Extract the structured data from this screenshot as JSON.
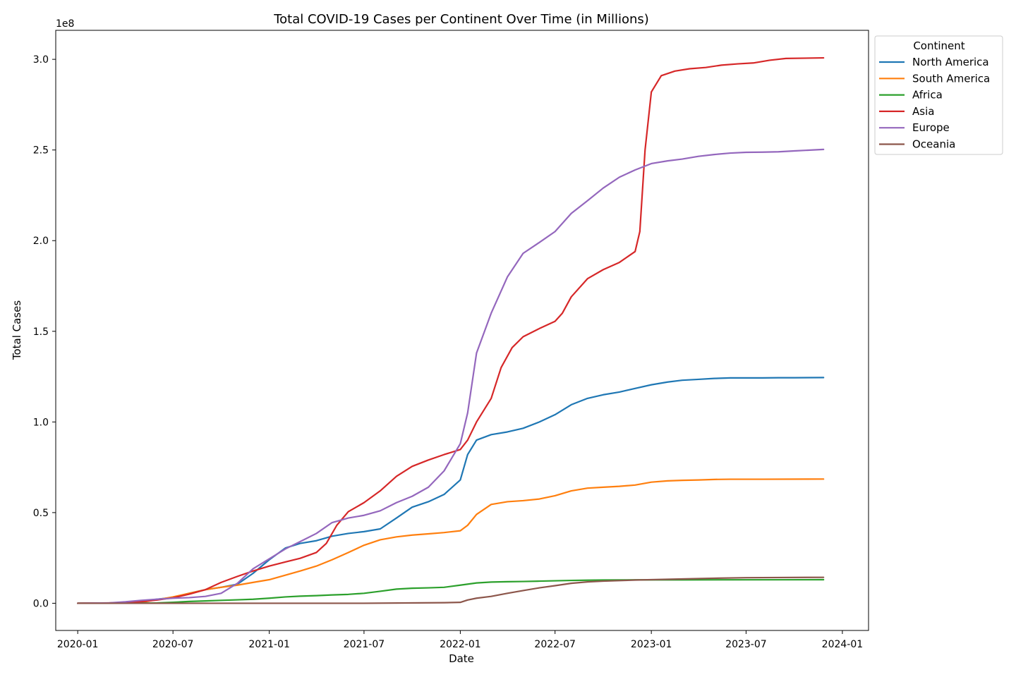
{
  "chart_data": {
    "type": "line",
    "title": "Total COVID-19 Cases per Continent Over Time (in Millions)",
    "xlabel": "Date",
    "ylabel": "Total Cases",
    "y_offset_label": "1e8",
    "y_scale": 100000000,
    "x_ticks": [
      "2020-01",
      "2020-07",
      "2021-01",
      "2021-07",
      "2022-01",
      "2022-07",
      "2023-01",
      "2023-07",
      "2024-01"
    ],
    "y_ticks": [
      0.0,
      0.5,
      1.0,
      1.5,
      2.0,
      2.5,
      3.0
    ],
    "y_tick_labels": [
      "0.0",
      "0.5",
      "1.0",
      "1.5",
      "2.0",
      "2.5",
      "3.0"
    ],
    "xlim": [
      "2019-11-20",
      "2024-02-20"
    ],
    "ylim": [
      -0.15,
      3.16
    ],
    "grid": false,
    "legend": {
      "title": "Continent",
      "placement": "upper-right-outside"
    },
    "series": [
      {
        "name": "North America",
        "color": "#1f77b4",
        "points": [
          [
            "2020-01-01",
            0.0
          ],
          [
            "2020-03-15",
            0.001
          ],
          [
            "2020-05-01",
            0.012
          ],
          [
            "2020-06-01",
            0.022
          ],
          [
            "2020-07-01",
            0.032
          ],
          [
            "2020-08-01",
            0.055
          ],
          [
            "2020-09-01",
            0.075
          ],
          [
            "2020-10-01",
            0.088
          ],
          [
            "2020-11-01",
            0.105
          ],
          [
            "2020-12-01",
            0.165
          ],
          [
            "2021-01-01",
            0.24
          ],
          [
            "2021-02-01",
            0.305
          ],
          [
            "2021-03-01",
            0.33
          ],
          [
            "2021-04-01",
            0.345
          ],
          [
            "2021-05-01",
            0.37
          ],
          [
            "2021-06-01",
            0.385
          ],
          [
            "2021-07-01",
            0.395
          ],
          [
            "2021-08-01",
            0.41
          ],
          [
            "2021-09-01",
            0.47
          ],
          [
            "2021-10-01",
            0.53
          ],
          [
            "2021-11-01",
            0.56
          ],
          [
            "2021-12-01",
            0.6
          ],
          [
            "2022-01-01",
            0.68
          ],
          [
            "2022-01-15",
            0.82
          ],
          [
            "2022-02-01",
            0.9
          ],
          [
            "2022-03-01",
            0.93
          ],
          [
            "2022-04-01",
            0.945
          ],
          [
            "2022-05-01",
            0.965
          ],
          [
            "2022-06-01",
            1.0
          ],
          [
            "2022-07-01",
            1.04
          ],
          [
            "2022-08-01",
            1.095
          ],
          [
            "2022-09-01",
            1.13
          ],
          [
            "2022-10-01",
            1.15
          ],
          [
            "2022-11-01",
            1.165
          ],
          [
            "2022-12-01",
            1.185
          ],
          [
            "2023-01-01",
            1.205
          ],
          [
            "2023-02-01",
            1.22
          ],
          [
            "2023-03-01",
            1.23
          ],
          [
            "2023-04-01",
            1.235
          ],
          [
            "2023-05-01",
            1.24
          ],
          [
            "2023-06-01",
            1.243
          ],
          [
            "2023-07-01",
            1.243
          ],
          [
            "2023-08-01",
            1.243
          ],
          [
            "2023-09-01",
            1.244
          ],
          [
            "2023-10-01",
            1.244
          ],
          [
            "2023-11-26",
            1.245
          ]
        ]
      },
      {
        "name": "South America",
        "color": "#ff7f0e",
        "points": [
          [
            "2020-01-01",
            0.0
          ],
          [
            "2020-04-01",
            0.0
          ],
          [
            "2020-05-01",
            0.005
          ],
          [
            "2020-06-01",
            0.02
          ],
          [
            "2020-07-01",
            0.035
          ],
          [
            "2020-08-01",
            0.055
          ],
          [
            "2020-09-01",
            0.075
          ],
          [
            "2020-10-01",
            0.088
          ],
          [
            "2020-11-01",
            0.1
          ],
          [
            "2020-12-01",
            0.115
          ],
          [
            "2021-01-01",
            0.13
          ],
          [
            "2021-02-01",
            0.155
          ],
          [
            "2021-03-01",
            0.178
          ],
          [
            "2021-04-01",
            0.205
          ],
          [
            "2021-05-01",
            0.24
          ],
          [
            "2021-06-01",
            0.28
          ],
          [
            "2021-07-01",
            0.32
          ],
          [
            "2021-08-01",
            0.35
          ],
          [
            "2021-09-01",
            0.366
          ],
          [
            "2021-10-01",
            0.376
          ],
          [
            "2021-11-01",
            0.383
          ],
          [
            "2021-12-01",
            0.39
          ],
          [
            "2022-01-01",
            0.4
          ],
          [
            "2022-01-15",
            0.43
          ],
          [
            "2022-02-01",
            0.49
          ],
          [
            "2022-03-01",
            0.545
          ],
          [
            "2022-04-01",
            0.56
          ],
          [
            "2022-05-01",
            0.566
          ],
          [
            "2022-06-01",
            0.575
          ],
          [
            "2022-07-01",
            0.593
          ],
          [
            "2022-08-01",
            0.62
          ],
          [
            "2022-09-01",
            0.635
          ],
          [
            "2022-10-01",
            0.64
          ],
          [
            "2022-11-01",
            0.645
          ],
          [
            "2022-12-01",
            0.652
          ],
          [
            "2023-01-01",
            0.668
          ],
          [
            "2023-02-01",
            0.675
          ],
          [
            "2023-03-01",
            0.678
          ],
          [
            "2023-04-01",
            0.68
          ],
          [
            "2023-05-01",
            0.683
          ],
          [
            "2023-06-01",
            0.684
          ],
          [
            "2023-08-01",
            0.684
          ],
          [
            "2023-11-26",
            0.685
          ]
        ]
      },
      {
        "name": "Africa",
        "color": "#2ca02c",
        "points": [
          [
            "2020-01-01",
            0.0
          ],
          [
            "2020-04-01",
            0.0
          ],
          [
            "2020-06-01",
            0.002
          ],
          [
            "2020-07-01",
            0.005
          ],
          [
            "2020-08-01",
            0.01
          ],
          [
            "2020-09-01",
            0.013
          ],
          [
            "2020-10-01",
            0.016
          ],
          [
            "2020-11-01",
            0.019
          ],
          [
            "2020-12-01",
            0.022
          ],
          [
            "2021-01-01",
            0.028
          ],
          [
            "2021-02-01",
            0.035
          ],
          [
            "2021-03-01",
            0.039
          ],
          [
            "2021-04-01",
            0.042
          ],
          [
            "2021-05-01",
            0.046
          ],
          [
            "2021-06-01",
            0.049
          ],
          [
            "2021-07-01",
            0.055
          ],
          [
            "2021-08-01",
            0.066
          ],
          [
            "2021-09-01",
            0.078
          ],
          [
            "2021-10-01",
            0.083
          ],
          [
            "2021-11-01",
            0.085
          ],
          [
            "2021-12-01",
            0.088
          ],
          [
            "2022-01-01",
            0.1
          ],
          [
            "2022-02-01",
            0.112
          ],
          [
            "2022-03-01",
            0.117
          ],
          [
            "2022-04-01",
            0.119
          ],
          [
            "2022-05-01",
            0.12
          ],
          [
            "2022-06-01",
            0.122
          ],
          [
            "2022-07-01",
            0.124
          ],
          [
            "2022-08-01",
            0.126
          ],
          [
            "2022-09-01",
            0.127
          ],
          [
            "2022-10-01",
            0.128
          ],
          [
            "2022-12-01",
            0.129
          ],
          [
            "2023-03-01",
            0.129
          ],
          [
            "2023-11-26",
            0.13
          ]
        ]
      },
      {
        "name": "Asia",
        "color": "#d62728",
        "points": [
          [
            "2020-01-01",
            0.0
          ],
          [
            "2020-03-01",
            0.002
          ],
          [
            "2020-04-01",
            0.004
          ],
          [
            "2020-05-01",
            0.009
          ],
          [
            "2020-06-01",
            0.018
          ],
          [
            "2020-07-01",
            0.03
          ],
          [
            "2020-08-01",
            0.05
          ],
          [
            "2020-09-01",
            0.075
          ],
          [
            "2020-10-01",
            0.115
          ],
          [
            "2020-11-01",
            0.148
          ],
          [
            "2020-12-01",
            0.178
          ],
          [
            "2021-01-01",
            0.205
          ],
          [
            "2021-02-01",
            0.228
          ],
          [
            "2021-03-01",
            0.248
          ],
          [
            "2021-04-01",
            0.28
          ],
          [
            "2021-04-20",
            0.33
          ],
          [
            "2021-05-10",
            0.43
          ],
          [
            "2021-06-01",
            0.505
          ],
          [
            "2021-07-01",
            0.555
          ],
          [
            "2021-08-01",
            0.62
          ],
          [
            "2021-09-01",
            0.7
          ],
          [
            "2021-10-01",
            0.755
          ],
          [
            "2021-11-01",
            0.79
          ],
          [
            "2021-12-01",
            0.82
          ],
          [
            "2022-01-01",
            0.848
          ],
          [
            "2022-01-15",
            0.9
          ],
          [
            "2022-02-01",
            1.0
          ],
          [
            "2022-03-01",
            1.13
          ],
          [
            "2022-03-20",
            1.3
          ],
          [
            "2022-04-10",
            1.41
          ],
          [
            "2022-05-01",
            1.47
          ],
          [
            "2022-06-01",
            1.515
          ],
          [
            "2022-07-01",
            1.555
          ],
          [
            "2022-07-15",
            1.6
          ],
          [
            "2022-08-01",
            1.69
          ],
          [
            "2022-09-01",
            1.79
          ],
          [
            "2022-10-01",
            1.84
          ],
          [
            "2022-11-01",
            1.88
          ],
          [
            "2022-12-01",
            1.94
          ],
          [
            "2022-12-10",
            2.05
          ],
          [
            "2022-12-20",
            2.5
          ],
          [
            "2023-01-01",
            2.82
          ],
          [
            "2023-01-20",
            2.91
          ],
          [
            "2023-02-15",
            2.935
          ],
          [
            "2023-03-15",
            2.948
          ],
          [
            "2023-04-15",
            2.955
          ],
          [
            "2023-05-15",
            2.968
          ],
          [
            "2023-06-15",
            2.975
          ],
          [
            "2023-07-15",
            2.98
          ],
          [
            "2023-08-15",
            2.995
          ],
          [
            "2023-09-15",
            3.005
          ],
          [
            "2023-11-26",
            3.008
          ]
        ]
      },
      {
        "name": "Europe",
        "color": "#9467bd",
        "points": [
          [
            "2020-01-01",
            0.0
          ],
          [
            "2020-03-01",
            0.002
          ],
          [
            "2020-04-01",
            0.008
          ],
          [
            "2020-05-01",
            0.016
          ],
          [
            "2020-06-01",
            0.022
          ],
          [
            "2020-07-01",
            0.028
          ],
          [
            "2020-08-01",
            0.031
          ],
          [
            "2020-09-01",
            0.038
          ],
          [
            "2020-10-01",
            0.055
          ],
          [
            "2020-11-01",
            0.11
          ],
          [
            "2020-12-01",
            0.19
          ],
          [
            "2021-01-01",
            0.245
          ],
          [
            "2021-02-01",
            0.3
          ],
          [
            "2021-03-01",
            0.34
          ],
          [
            "2021-04-01",
            0.385
          ],
          [
            "2021-05-01",
            0.445
          ],
          [
            "2021-06-01",
            0.47
          ],
          [
            "2021-07-01",
            0.485
          ],
          [
            "2021-08-01",
            0.51
          ],
          [
            "2021-09-01",
            0.555
          ],
          [
            "2021-10-01",
            0.59
          ],
          [
            "2021-11-01",
            0.64
          ],
          [
            "2021-12-01",
            0.73
          ],
          [
            "2022-01-01",
            0.88
          ],
          [
            "2022-01-15",
            1.05
          ],
          [
            "2022-02-01",
            1.38
          ],
          [
            "2022-03-01",
            1.6
          ],
          [
            "2022-04-01",
            1.8
          ],
          [
            "2022-05-01",
            1.93
          ],
          [
            "2022-06-01",
            1.99
          ],
          [
            "2022-07-01",
            2.05
          ],
          [
            "2022-08-01",
            2.15
          ],
          [
            "2022-09-01",
            2.22
          ],
          [
            "2022-10-01",
            2.29
          ],
          [
            "2022-11-01",
            2.35
          ],
          [
            "2022-12-01",
            2.39
          ],
          [
            "2023-01-01",
            2.425
          ],
          [
            "2023-02-01",
            2.44
          ],
          [
            "2023-03-01",
            2.45
          ],
          [
            "2023-04-01",
            2.465
          ],
          [
            "2023-05-01",
            2.475
          ],
          [
            "2023-06-01",
            2.483
          ],
          [
            "2023-07-01",
            2.487
          ],
          [
            "2023-08-01",
            2.488
          ],
          [
            "2023-09-01",
            2.49
          ],
          [
            "2023-10-01",
            2.495
          ],
          [
            "2023-11-26",
            2.503
          ]
        ]
      },
      {
        "name": "Oceania",
        "color": "#8c564b",
        "points": [
          [
            "2020-01-01",
            0.0
          ],
          [
            "2021-07-01",
            0.0
          ],
          [
            "2021-12-01",
            0.003
          ],
          [
            "2022-01-01",
            0.005
          ],
          [
            "2022-01-15",
            0.018
          ],
          [
            "2022-02-01",
            0.028
          ],
          [
            "2022-03-01",
            0.038
          ],
          [
            "2022-04-01",
            0.055
          ],
          [
            "2022-05-01",
            0.07
          ],
          [
            "2022-06-01",
            0.085
          ],
          [
            "2022-07-01",
            0.097
          ],
          [
            "2022-08-01",
            0.11
          ],
          [
            "2022-09-01",
            0.118
          ],
          [
            "2022-10-01",
            0.122
          ],
          [
            "2022-11-01",
            0.125
          ],
          [
            "2022-12-01",
            0.128
          ],
          [
            "2023-01-01",
            0.13
          ],
          [
            "2023-03-01",
            0.134
          ],
          [
            "2023-05-01",
            0.138
          ],
          [
            "2023-07-01",
            0.141
          ],
          [
            "2023-09-01",
            0.142
          ],
          [
            "2023-11-26",
            0.143
          ]
        ]
      }
    ]
  }
}
